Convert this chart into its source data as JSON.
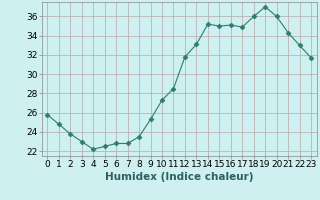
{
  "x": [
    0,
    1,
    2,
    3,
    4,
    5,
    6,
    7,
    8,
    9,
    10,
    11,
    12,
    13,
    14,
    15,
    16,
    17,
    18,
    19,
    20,
    21,
    22,
    23
  ],
  "y": [
    25.8,
    24.8,
    23.8,
    23.0,
    22.2,
    22.5,
    22.8,
    22.8,
    23.5,
    25.3,
    27.3,
    28.5,
    31.8,
    33.1,
    35.2,
    35.0,
    35.1,
    34.9,
    36.0,
    37.0,
    36.0,
    34.3,
    33.0,
    31.7
  ],
  "line_color": "#2d7d6e",
  "marker": "D",
  "marker_size": 2.5,
  "bg_color": "#cff0f0",
  "grid_color_major": "#b8a8a8",
  "grid_color_minor": "#d4c4c4",
  "xlabel": "Humidex (Indice chaleur)",
  "xlim": [
    -0.5,
    23.5
  ],
  "ylim": [
    21.5,
    37.5
  ],
  "yticks": [
    22,
    24,
    26,
    28,
    30,
    32,
    34,
    36
  ],
  "xticks": [
    0,
    1,
    2,
    3,
    4,
    5,
    6,
    7,
    8,
    9,
    10,
    11,
    12,
    13,
    14,
    15,
    16,
    17,
    18,
    19,
    20,
    21,
    22,
    23
  ],
  "tick_fontsize": 6.5,
  "label_fontsize": 7.5
}
